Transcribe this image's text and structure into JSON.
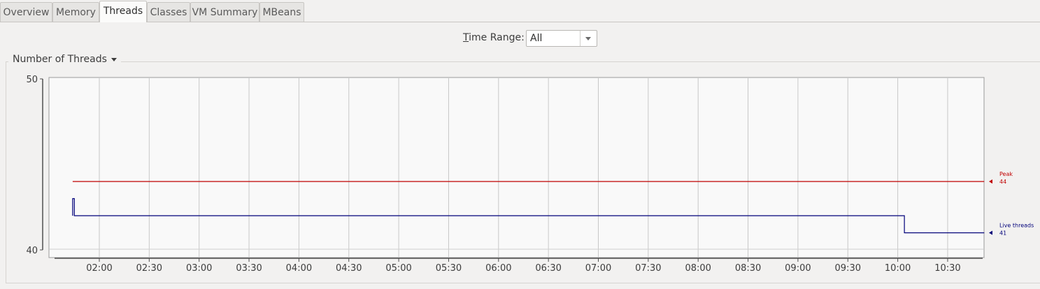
{
  "tabs": [
    {
      "label": "Overview",
      "active": false
    },
    {
      "label": "Memory",
      "active": false
    },
    {
      "label": "Threads",
      "active": true
    },
    {
      "label": "Classes",
      "active": false
    },
    {
      "label": "VM Summary",
      "active": false
    },
    {
      "label": "MBeans",
      "active": false
    }
  ],
  "time_range": {
    "label_first": "T",
    "label_rest": "ime Range:",
    "value": "All"
  },
  "panel": {
    "title": "Number of Threads"
  },
  "chart_data": {
    "type": "line",
    "ylim": [
      40,
      50
    ],
    "yticks": [
      "50",
      "40"
    ],
    "xticks": [
      "02:00",
      "02:30",
      "03:00",
      "03:30",
      "04:00",
      "04:30",
      "05:00",
      "05:30",
      "06:00",
      "06:30",
      "07:00",
      "07:30",
      "08:00",
      "08:30",
      "09:00",
      "09:30",
      "10:00",
      "10:30"
    ],
    "series": [
      {
        "name": "Peak",
        "label_value": "44",
        "color": "#c00000",
        "points": [
          [
            "01:44",
            44
          ],
          [
            "10:52",
            44
          ]
        ]
      },
      {
        "name": "Live threads",
        "label_value": "41",
        "color": "#00007a",
        "points": [
          [
            "01:44",
            42
          ],
          [
            "01:44",
            43
          ],
          [
            "01:45",
            43
          ],
          [
            "01:45",
            42
          ],
          [
            "10:04",
            42
          ],
          [
            "10:04",
            41
          ],
          [
            "10:52",
            41
          ]
        ]
      }
    ]
  }
}
